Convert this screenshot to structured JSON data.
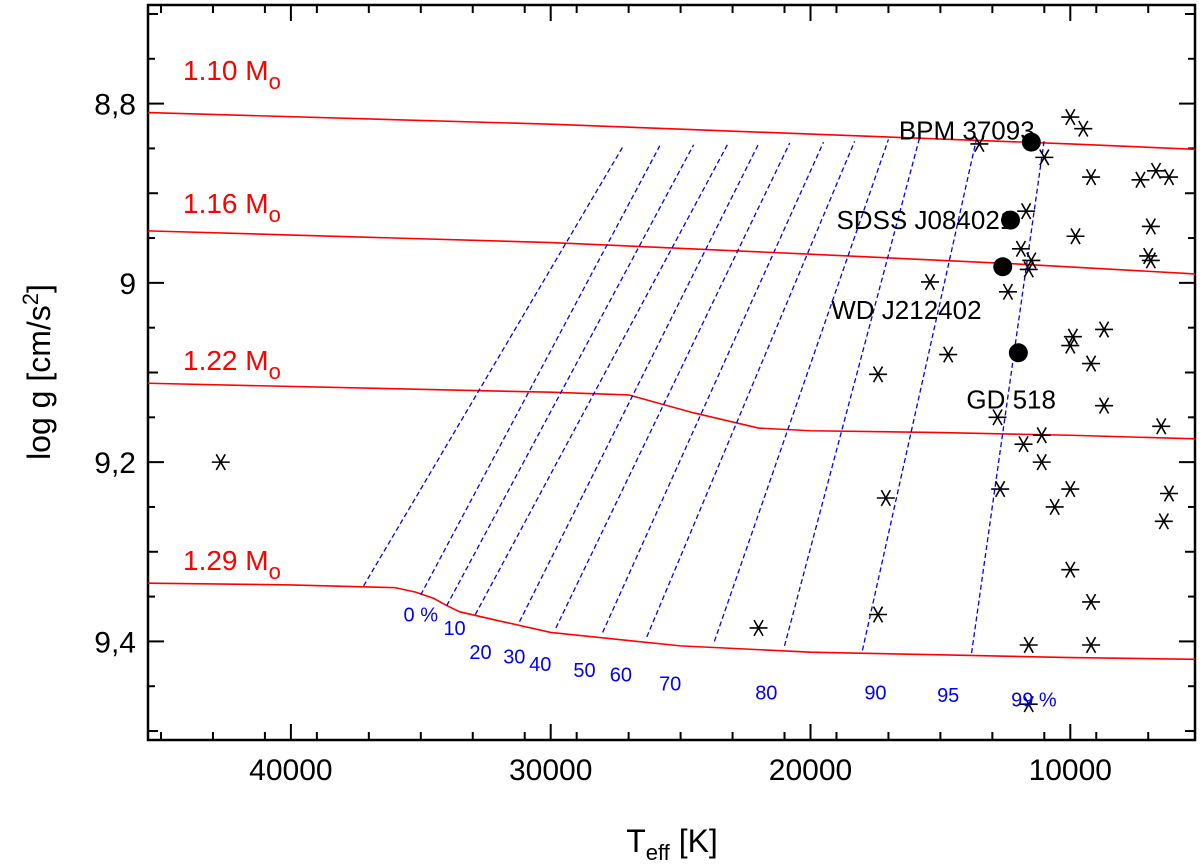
{
  "chart_data": {
    "type": "scatter",
    "xlabel": "T",
    "xlabel_sub": "eff",
    "xlabel_unit": "[K]",
    "ylabel": "log g [cm/s",
    "ylabel_sup": "2",
    "ylabel_end": "]",
    "xlim": [
      45500,
      5200
    ],
    "ylim": [
      8.69,
      9.51
    ],
    "x_ticks": [
      40000,
      30000,
      20000,
      10000
    ],
    "x_tick_labels": [
      "40000",
      "30000",
      "20000",
      "10000"
    ],
    "y_ticks": [
      8.8,
      9.0,
      9.2,
      9.4
    ],
    "y_tick_labels": [
      "8,8",
      "9",
      "9,2",
      "9,4"
    ],
    "colors": {
      "track": "#ff0000",
      "crystallization": "#0000ff",
      "points": "#000000"
    },
    "mass_tracks": [
      {
        "label": "1.10 M",
        "sub": "o",
        "teff": [
          45500,
          30000,
          20000,
          10000,
          5200
        ],
        "logg": [
          8.81,
          8.823,
          8.834,
          8.845,
          8.851
        ]
      },
      {
        "label": "1.16 M",
        "sub": "o",
        "teff": [
          45500,
          30000,
          20000,
          12000,
          5200
        ],
        "logg": [
          8.942,
          8.955,
          8.968,
          8.979,
          8.99
        ]
      },
      {
        "label": "1.22 M",
        "sub": "o",
        "teff": [
          45500,
          30000,
          27000,
          24500,
          22000,
          20000,
          15000,
          10000,
          5200
        ],
        "logg": [
          9.112,
          9.122,
          9.125,
          9.145,
          9.162,
          9.165,
          9.167,
          9.17,
          9.174
        ]
      },
      {
        "label": "1.29 M",
        "sub": "o",
        "teff": [
          45500,
          40000,
          36000,
          35200,
          34500,
          34000,
          33500,
          32000,
          30000,
          25000,
          20000,
          15000,
          10000,
          5200
        ],
        "logg": [
          9.335,
          9.337,
          9.34,
          9.345,
          9.352,
          9.36,
          9.367,
          9.377,
          9.39,
          9.405,
          9.412,
          9.415,
          9.418,
          9.42
        ]
      }
    ],
    "crystallization_lines": [
      {
        "label": "0 %",
        "teff": [
          37200,
          27200
        ],
        "logg": [
          9.338,
          8.847
        ]
      },
      {
        "label": "10",
        "teff": [
          35000,
          25800
        ],
        "logg": [
          9.348,
          8.847
        ]
      },
      {
        "label": "20",
        "teff": [
          34000,
          24500
        ],
        "logg": [
          9.36,
          8.846
        ]
      },
      {
        "label": "30",
        "teff": [
          32900,
          23200
        ],
        "logg": [
          9.37,
          8.846
        ]
      },
      {
        "label": "40",
        "teff": [
          31200,
          22000
        ],
        "logg": [
          9.378,
          8.845
        ]
      },
      {
        "label": "50",
        "teff": [
          29800,
          20800
        ],
        "logg": [
          9.385,
          8.844
        ]
      },
      {
        "label": "60",
        "teff": [
          28000,
          19500
        ],
        "logg": [
          9.39,
          8.843
        ]
      },
      {
        "label": "70",
        "teff": [
          26300,
          18300
        ],
        "logg": [
          9.395,
          8.842
        ]
      },
      {
        "label": "80",
        "teff": [
          23700,
          17000
        ],
        "logg": [
          9.4,
          8.84
        ]
      },
      {
        "label": "90",
        "teff": [
          21000,
          15800
        ],
        "logg": [
          9.405,
          8.838
        ]
      },
      {
        "label": "95",
        "teff": [
          18000,
          13600
        ],
        "logg": [
          9.41,
          8.838
        ]
      },
      {
        "label": "99 %",
        "teff": [
          13800,
          11000
        ],
        "logg": [
          9.413,
          8.84
        ]
      }
    ],
    "crystallization_label_pos": [
      {
        "text": "0 %",
        "teff": 35000,
        "logg": 9.37
      },
      {
        "text": "10",
        "teff": 33700,
        "logg": 9.385
      },
      {
        "text": "20",
        "teff": 32700,
        "logg": 9.412
      },
      {
        "text": "30",
        "teff": 31400,
        "logg": 9.417
      },
      {
        "text": "40",
        "teff": 30400,
        "logg": 9.425
      },
      {
        "text": "50",
        "teff": 28700,
        "logg": 9.432
      },
      {
        "text": "60",
        "teff": 27300,
        "logg": 9.437
      },
      {
        "text": "70",
        "teff": 25400,
        "logg": 9.447
      },
      {
        "text": "80",
        "teff": 21700,
        "logg": 9.457
      },
      {
        "text": "90",
        "teff": 17500,
        "logg": 9.457
      },
      {
        "text": "95",
        "teff": 14700,
        "logg": 9.46
      },
      {
        "text": "99 %",
        "teff": 11400,
        "logg": 9.465
      }
    ],
    "named_stars": [
      {
        "name": "BPM 37093",
        "teff": 11500,
        "logg": 8.843
      },
      {
        "name": "SDSS J084021",
        "teff": 12300,
        "logg": 8.93
      },
      {
        "name": "WD J212402",
        "teff": 12600,
        "logg": 8.982
      },
      {
        "name": "GD 518",
        "teff": 12000,
        "logg": 9.078
      }
    ],
    "named_star_label_pos": [
      {
        "teff": 16600,
        "logg": 8.83
      },
      {
        "teff": 19000,
        "logg": 8.93
      },
      {
        "teff": 19200,
        "logg": 9.03
      },
      {
        "teff": 14000,
        "logg": 9.13
      }
    ],
    "other_stars": [
      {
        "teff": 42700,
        "logg": 9.2
      },
      {
        "teff": 13500,
        "logg": 8.845
      },
      {
        "teff": 10000,
        "logg": 8.815
      },
      {
        "teff": 9500,
        "logg": 8.828
      },
      {
        "teff": 11000,
        "logg": 8.86
      },
      {
        "teff": 9200,
        "logg": 8.882
      },
      {
        "teff": 7300,
        "logg": 8.885
      },
      {
        "teff": 6700,
        "logg": 8.875
      },
      {
        "teff": 6200,
        "logg": 8.882
      },
      {
        "teff": 11700,
        "logg": 8.92
      },
      {
        "teff": 6900,
        "logg": 8.937
      },
      {
        "teff": 9800,
        "logg": 8.948
      },
      {
        "teff": 11900,
        "logg": 8.962
      },
      {
        "teff": 11600,
        "logg": 8.985
      },
      {
        "teff": 11500,
        "logg": 8.975
      },
      {
        "teff": 7000,
        "logg": 8.97
      },
      {
        "teff": 6900,
        "logg": 8.975
      },
      {
        "teff": 15400,
        "logg": 8.999
      },
      {
        "teff": 12400,
        "logg": 9.01
      },
      {
        "teff": 8700,
        "logg": 9.052
      },
      {
        "teff": 9900,
        "logg": 9.06
      },
      {
        "teff": 10000,
        "logg": 9.07
      },
      {
        "teff": 14700,
        "logg": 9.08
      },
      {
        "teff": 9200,
        "logg": 9.09
      },
      {
        "teff": 17400,
        "logg": 9.102
      },
      {
        "teff": 8700,
        "logg": 9.137
      },
      {
        "teff": 12800,
        "logg": 9.15
      },
      {
        "teff": 6500,
        "logg": 9.16
      },
      {
        "teff": 11100,
        "logg": 9.17
      },
      {
        "teff": 11800,
        "logg": 9.18
      },
      {
        "teff": 11100,
        "logg": 9.2
      },
      {
        "teff": 10000,
        "logg": 9.23
      },
      {
        "teff": 12700,
        "logg": 9.23
      },
      {
        "teff": 6200,
        "logg": 9.235
      },
      {
        "teff": 17100,
        "logg": 9.24
      },
      {
        "teff": 10600,
        "logg": 9.25
      },
      {
        "teff": 6400,
        "logg": 9.266
      },
      {
        "teff": 10000,
        "logg": 9.32
      },
      {
        "teff": 9200,
        "logg": 9.356
      },
      {
        "teff": 17400,
        "logg": 9.37
      },
      {
        "teff": 22000,
        "logg": 9.385
      },
      {
        "teff": 11600,
        "logg": 9.404
      },
      {
        "teff": 9200,
        "logg": 9.404
      },
      {
        "teff": 11600,
        "logg": 9.47
      }
    ]
  }
}
